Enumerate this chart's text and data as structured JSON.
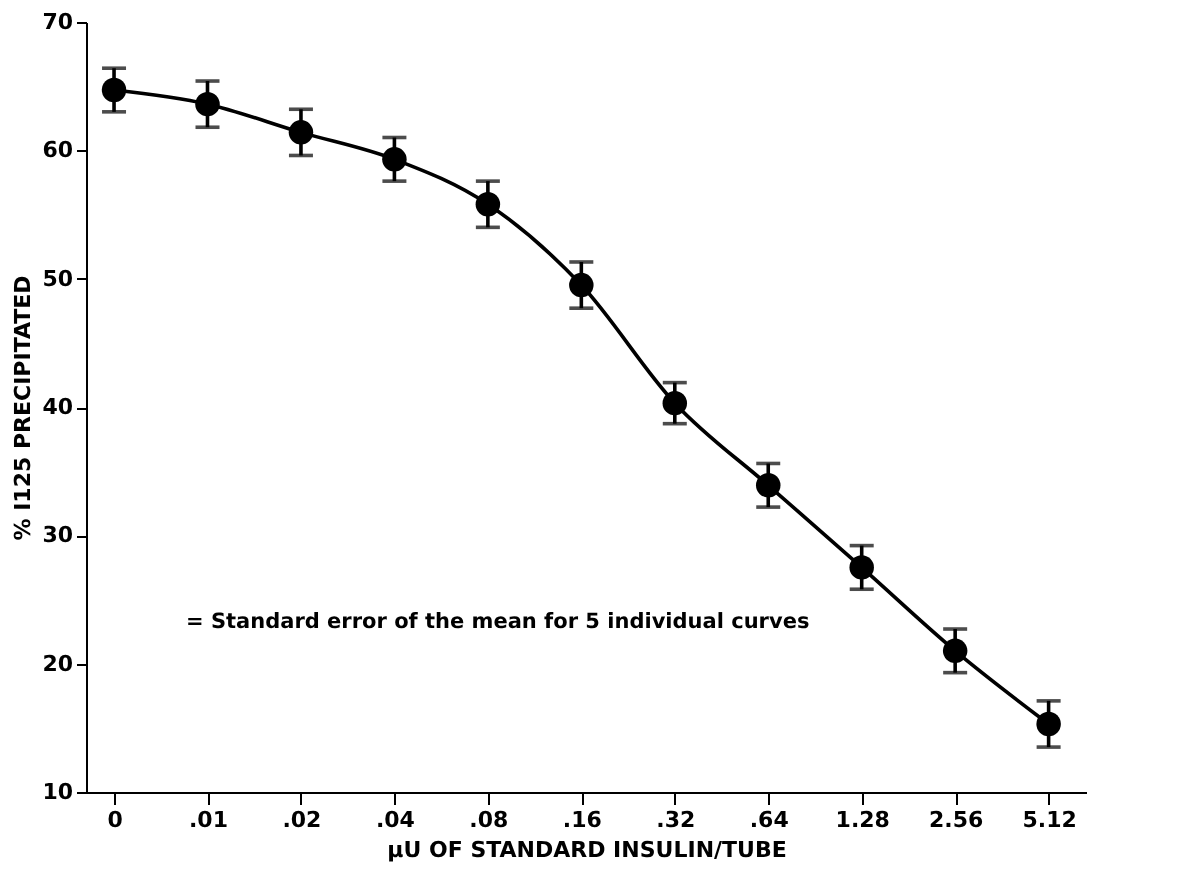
{
  "chart_data": {
    "type": "line",
    "xlabel": "μU OF STANDARD INSULIN/TUBE",
    "ylabel": "% I125 PRECIPITATED",
    "categories": [
      "0",
      ".01",
      ".02",
      ".04",
      ".08",
      ".16",
      ".32",
      ".64",
      "1.28",
      "2.56",
      "5.12"
    ],
    "series": [
      {
        "color": "#000000",
        "values": [
          64.7,
          63.6,
          61.4,
          59.3,
          55.8,
          49.5,
          40.3,
          33.9,
          27.5,
          21.0,
          15.3
        ],
        "errors": [
          1.7,
          1.8,
          1.8,
          1.7,
          1.8,
          1.8,
          1.6,
          1.7,
          1.7,
          1.7,
          1.8
        ]
      }
    ],
    "marker": "circle",
    "line_style": "solid",
    "ylim": [
      10,
      70
    ],
    "yticks": [
      10,
      20,
      30,
      40,
      50,
      60,
      70
    ],
    "grid": false,
    "annotations": [
      "= Standard error of the mean for 5 individual curves"
    ]
  }
}
